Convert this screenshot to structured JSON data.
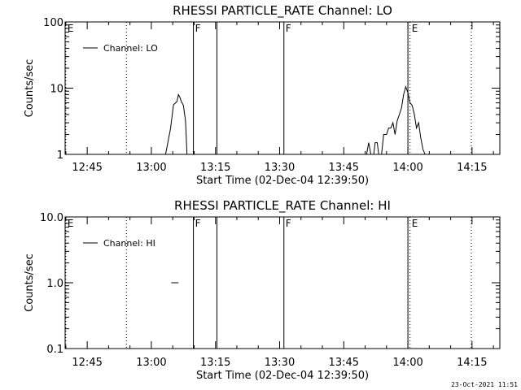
{
  "footer": {
    "timestamp": "23-Oct-2021 11:51"
  },
  "chart_data": [
    {
      "type": "line",
      "title": "RHESSI PARTICLE_RATE Channel: LO",
      "xlabel": "Start Time (02-Dec-04 12:39:50)",
      "ylabel": "Counts/sec",
      "yscale": "log",
      "xlim": [
        "12:39:50",
        "14:21:30"
      ],
      "ylim": [
        1,
        100
      ],
      "x_ticks": [
        "12:45",
        "13:00",
        "13:15",
        "13:30",
        "13:45",
        "14:00",
        "14:15"
      ],
      "y_ticks": [
        "1",
        "10",
        "100"
      ],
      "legend": {
        "position": "top-left",
        "label": "Channel: LO"
      },
      "markers": [
        {
          "time": "12:40:00",
          "label": "E",
          "style": "dotted"
        },
        {
          "time": "12:54:10",
          "label": "",
          "style": "dotted"
        },
        {
          "time": "13:09:50",
          "label": "F",
          "style": "solid"
        },
        {
          "time": "13:15:20",
          "label": "",
          "style": "solid"
        },
        {
          "time": "13:31:00",
          "label": "F",
          "style": "solid"
        },
        {
          "time": "14:00:00",
          "label": "",
          "style": "solid"
        },
        {
          "time": "14:00:30",
          "label": "E",
          "style": "dotted"
        },
        {
          "time": "14:14:50",
          "label": "",
          "style": "dotted"
        }
      ],
      "series": [
        {
          "name": "Channel: LO",
          "segments": [
            [
              [
                "13:03:20",
                1.0
              ],
              [
                "13:04:30",
                2.5
              ],
              [
                "13:05:10",
                5.6
              ],
              [
                "13:05:40",
                6.0
              ],
              [
                "13:06:00",
                6.3
              ],
              [
                "13:06:20",
                8.0
              ],
              [
                "13:06:40",
                7.3
              ],
              [
                "13:07:00",
                6.3
              ],
              [
                "13:07:30",
                5.5
              ],
              [
                "13:08:00",
                3.2
              ],
              [
                "13:08:20",
                1.0
              ]
            ],
            [
              [
                "13:50:20",
                1.0
              ],
              [
                "13:50:50",
                1.5
              ],
              [
                "13:51:20",
                1.0
              ]
            ],
            [
              [
                "13:52:00",
                1.0
              ],
              [
                "13:52:20",
                1.5
              ],
              [
                "13:52:50",
                1.5
              ],
              [
                "13:53:10",
                1.0
              ]
            ],
            [
              [
                "13:53:50",
                1.0
              ],
              [
                "13:54:20",
                2.0
              ],
              [
                "13:55:00",
                2.0
              ],
              [
                "13:55:30",
                2.5
              ],
              [
                "13:56:00",
                2.5
              ],
              [
                "13:56:30",
                3.0
              ],
              [
                "13:57:00",
                2.0
              ],
              [
                "13:57:30",
                3.2
              ],
              [
                "13:58:00",
                4.0
              ],
              [
                "13:58:30",
                5.0
              ],
              [
                "13:59:00",
                8.0
              ],
              [
                "13:59:30",
                10.5
              ],
              [
                "14:00:00",
                8.5
              ],
              [
                "14:00:30",
                6.0
              ],
              [
                "14:01:00",
                5.5
              ],
              [
                "14:01:30",
                4.0
              ],
              [
                "14:02:00",
                2.5
              ],
              [
                "14:02:30",
                3.0
              ],
              [
                "14:03:00",
                1.8
              ],
              [
                "14:03:30",
                1.2
              ],
              [
                "14:04:00",
                1.0
              ]
            ]
          ]
        }
      ]
    },
    {
      "type": "line",
      "title": "RHESSI PARTICLE_RATE Channel: HI",
      "xlabel": "Start Time (02-Dec-04 12:39:50)",
      "ylabel": "Counts/sec",
      "yscale": "log",
      "xlim": [
        "12:39:50",
        "14:21:30"
      ],
      "ylim": [
        0.1,
        10
      ],
      "x_ticks": [
        "12:45",
        "13:00",
        "13:15",
        "13:30",
        "13:45",
        "14:00",
        "14:15"
      ],
      "y_ticks": [
        "0.1",
        "1.0",
        "10.0"
      ],
      "legend": {
        "position": "top-left",
        "label": "Channel: HI"
      },
      "markers": [
        {
          "time": "12:40:00",
          "label": "E",
          "style": "dotted"
        },
        {
          "time": "12:54:10",
          "label": "",
          "style": "dotted"
        },
        {
          "time": "13:09:50",
          "label": "F",
          "style": "solid"
        },
        {
          "time": "13:15:20",
          "label": "",
          "style": "solid"
        },
        {
          "time": "13:31:00",
          "label": "F",
          "style": "solid"
        },
        {
          "time": "14:00:00",
          "label": "",
          "style": "solid"
        },
        {
          "time": "14:00:30",
          "label": "E",
          "style": "dotted"
        },
        {
          "time": "14:14:50",
          "label": "",
          "style": "dotted"
        }
      ],
      "series": [
        {
          "name": "Channel: HI",
          "segments": [
            [
              [
                "13:04:40",
                1.0
              ],
              [
                "13:06:20",
                1.0
              ]
            ]
          ]
        }
      ]
    }
  ]
}
